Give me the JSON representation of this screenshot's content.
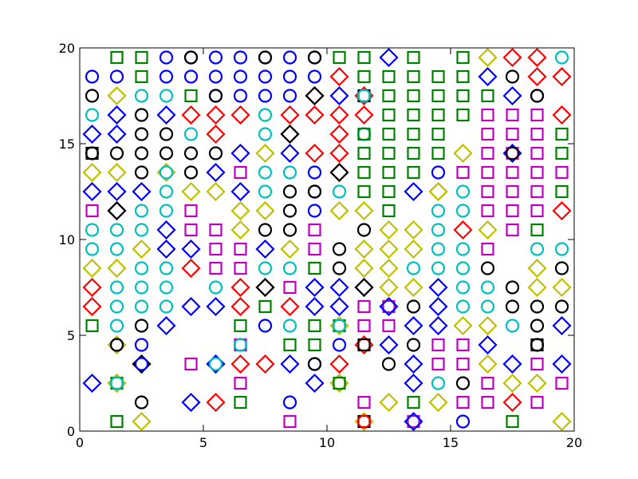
{
  "chart_data": {
    "type": "scatter",
    "title": "",
    "xlabel": "",
    "ylabel": "",
    "xlim": [
      0,
      20
    ],
    "ylim": [
      0,
      20
    ],
    "xticks": [
      "0",
      "5",
      "10",
      "15",
      "20"
    ],
    "yticks": [
      "0",
      "5",
      "10",
      "15",
      "20"
    ],
    "grid": false,
    "legend": "none",
    "marker_fill": "none",
    "colors": {
      "green": "#008000",
      "blue": "#0000ff",
      "cyan": "#00bfbf",
      "black": "#000000",
      "red": "#ff0000",
      "yellow": "#bfbf00",
      "magenta": "#bf00bf"
    },
    "marker_key": {
      "s": "square",
      "o": "circle",
      "d": "diamond"
    },
    "x": [
      0.5,
      1.5,
      2.5,
      3.5,
      4.5,
      5.5,
      6.5,
      7.5,
      8.5,
      9.5,
      10.5,
      11.5,
      12.5,
      13.5,
      14.5,
      15.5,
      16.5,
      17.5,
      18.5,
      19.5
    ],
    "y": [
      0.5,
      1.5,
      2.5,
      3.5,
      4.5,
      5.5,
      6.5,
      7.5,
      8.5,
      9.5,
      10.5,
      11.5,
      12.5,
      13.5,
      14.5,
      15.5,
      16.5,
      17.5,
      18.5,
      19.5
    ],
    "grid_rows": [
      [
        "",
        "gs",
        "gs",
        "bo",
        "bo",
        "bo",
        "bo",
        "bo",
        "bo",
        "bo",
        "gs",
        "gs",
        "bd",
        "gs",
        "",
        "gs",
        "yd",
        "rd",
        "rd",
        "co"
      ],
      [
        "bo",
        "bo",
        "gs",
        "bo",
        "bo",
        "bo",
        "bo",
        "bo",
        "bo",
        "bo",
        "rd",
        "gs",
        "gs",
        "gs",
        "gs",
        "gs",
        "bd",
        "ko",
        "rd",
        "rd"
      ],
      [
        "ko",
        "yd",
        "co",
        "co",
        "gs",
        "bo",
        "bo",
        "bo",
        "bo",
        "rd",
        "bd",
        "rd",
        "gs",
        "gs",
        "gs",
        "gs",
        "gs",
        "bd",
        "bo",
        ""
      ],
      [
        "co",
        "bd",
        "ko",
        "bd",
        "rd",
        "rd",
        "rd",
        "co",
        "rd",
        "rd",
        "rd",
        "rd",
        "gs",
        "gs",
        "gs",
        "gs",
        "ms",
        "ms",
        "ms",
        "rd"
      ],
      [
        "bd",
        "bd",
        "ko",
        "ko",
        "co",
        "rd",
        "",
        "co",
        "rd",
        "",
        "rd",
        "co",
        "gs",
        "gs",
        "gs",
        "",
        "ms",
        "ms",
        "ms",
        "gs"
      ],
      [
        "ks",
        "ko",
        "ko",
        "ko",
        "ko",
        "ko",
        "bd",
        "yd",
        "bd",
        "rd",
        "rd",
        "gs",
        "gs",
        "gs",
        "gs",
        "yd",
        "ms",
        "bd",
        "ms",
        "gs"
      ],
      [
        "yd",
        "yd",
        "ko",
        "yd",
        "ko",
        "bd",
        "ms",
        "co",
        "co",
        "bo",
        "rd",
        "gs",
        "gs",
        "gs",
        "bo",
        "ms",
        "ms",
        "ms",
        "ms",
        "ms"
      ],
      [
        "bd",
        "bd",
        "bd",
        "co",
        "yd",
        "yd",
        "bd",
        "co",
        "ko",
        "bo",
        "co",
        "gs",
        "gs",
        "bd",
        "yd",
        "co",
        "ms",
        "ms",
        "ms",
        "gs"
      ],
      [
        "ms",
        "bd",
        "co",
        "co",
        "ms",
        "",
        "yd",
        "yd",
        "ko",
        "bo",
        "yd",
        "yd",
        "gs",
        "",
        "co",
        "co",
        "ms",
        "ms",
        "ms",
        "rd"
      ],
      [
        "co",
        "co",
        "co",
        "bd",
        "ms",
        "ms",
        "yd",
        "ko",
        "ko",
        "ms",
        "",
        "ko",
        "yd",
        "yd",
        "co",
        "rd",
        "yd",
        "ms",
        "gs",
        ""
      ],
      [
        "co",
        "co",
        "yd",
        "bd",
        "bd",
        "ms",
        "ms",
        "bd",
        "yd",
        "ms",
        "ko",
        "yd",
        "yd",
        "yd",
        "co",
        "co",
        "ms",
        "",
        "co",
        "co"
      ],
      [
        "yd",
        "yd",
        "co",
        "co",
        "rd",
        "ms",
        "ms",
        "co",
        "co",
        "gs",
        "ko",
        "yd",
        "yd",
        "co",
        "co",
        "co",
        "ko",
        "",
        "yd",
        "ko"
      ],
      [
        "rd",
        "co",
        "co",
        "co",
        "",
        "co",
        "rd",
        "rd",
        "ms",
        "bd",
        "bd",
        "bd",
        "yd",
        "yd",
        "bd",
        "co",
        "co",
        "ko",
        "yd",
        "yd"
      ],
      [
        "rd",
        "co",
        "co",
        "co",
        "bd",
        "bd",
        "rd",
        "gs",
        "rd",
        "bd",
        "bd",
        "ms",
        "co",
        "ko",
        "bd",
        "co",
        "co",
        "ko",
        "ko",
        "ko"
      ],
      [
        "gs",
        "co",
        "ko",
        "bd",
        "",
        "",
        "gs",
        "bo",
        "co",
        "gs",
        "co",
        "ms",
        "ms",
        "bd",
        "bd",
        "yd",
        "yd",
        "co",
        "ko",
        "bd"
      ],
      [
        "",
        "ko",
        "bo",
        "",
        "",
        "",
        "ms",
        "",
        "gs",
        "gs",
        "bo",
        "rd",
        "bd",
        "ko",
        "ms",
        "ms",
        "bd",
        "",
        "ko",
        ""
      ],
      [
        "",
        "",
        "bd",
        "",
        "ms",
        "bd",
        "rd",
        "rd",
        "bd",
        "bo",
        "rd",
        "",
        "ko",
        "bd",
        "ms",
        "ms",
        "yd",
        "bd",
        "ms",
        "bd"
      ],
      [
        "bd",
        "yd",
        "",
        "",
        "",
        "",
        "ms",
        "",
        "",
        "bd",
        "co",
        "",
        "",
        "bd",
        "co",
        "ko",
        "ms",
        "yd",
        "yd",
        "ms"
      ],
      [
        "",
        "",
        "ko",
        "",
        "bd",
        "rd",
        "gs",
        "",
        "bo",
        "",
        "",
        "ms",
        "yd",
        "gs",
        "yd",
        "ms",
        "ms",
        "rd",
        "ms",
        ""
      ],
      [
        "",
        "gs",
        "yd",
        "",
        "",
        "",
        "",
        "",
        "ms",
        "",
        "",
        "yd",
        "",
        "co",
        "",
        "bo",
        "",
        "gs",
        "",
        "yd"
      ]
    ],
    "overlays": [
      {
        "x": 0.5,
        "y": 14.5,
        "m": "ko"
      },
      {
        "x": 1.5,
        "y": 11.5,
        "m": "kd"
      },
      {
        "x": 1.5,
        "y": 4.5,
        "m": "yd"
      },
      {
        "x": 1.5,
        "y": 4.5,
        "m": "ko"
      },
      {
        "x": 1.5,
        "y": 2.5,
        "m": "gs"
      },
      {
        "x": 1.5,
        "y": 2.5,
        "m": "yd"
      },
      {
        "x": 1.5,
        "y": 2.5,
        "m": "co"
      },
      {
        "x": 2.5,
        "y": 3.5,
        "m": "kd"
      },
      {
        "x": 2.5,
        "y": 3.5,
        "m": "bo"
      },
      {
        "x": 3.5,
        "y": 13.5,
        "m": "co"
      },
      {
        "x": 4.5,
        "y": 19.5,
        "m": "ko"
      },
      {
        "x": 5.5,
        "y": 17.5,
        "m": "ko"
      },
      {
        "x": 5.5,
        "y": 3.5,
        "m": "bd"
      },
      {
        "x": 5.5,
        "y": 3.5,
        "m": "co"
      },
      {
        "x": 6.5,
        "y": 4.5,
        "m": "ms"
      },
      {
        "x": 6.5,
        "y": 4.5,
        "m": "co"
      },
      {
        "x": 7.5,
        "y": 19.5,
        "m": "ko"
      },
      {
        "x": 7.5,
        "y": 7.5,
        "m": "kd"
      },
      {
        "x": 8.5,
        "y": 15.5,
        "m": "kd"
      },
      {
        "x": 9.5,
        "y": 19.5,
        "m": "ko"
      },
      {
        "x": 9.5,
        "y": 17.5,
        "m": "kd"
      },
      {
        "x": 9.5,
        "y": 12.5,
        "m": "ko"
      },
      {
        "x": 9.5,
        "y": 3.5,
        "m": "ko"
      },
      {
        "x": 10.5,
        "y": 13.5,
        "m": "kd"
      },
      {
        "x": 10.5,
        "y": 5.5,
        "m": "gs"
      },
      {
        "x": 10.5,
        "y": 5.5,
        "m": "yd"
      },
      {
        "x": 10.5,
        "y": 5.5,
        "m": "co"
      },
      {
        "x": 10.5,
        "y": 2.5,
        "m": "yd"
      },
      {
        "x": 10.5,
        "y": 2.5,
        "m": "gs"
      },
      {
        "x": 11.5,
        "y": 17.5,
        "m": "ks"
      },
      {
        "x": 11.5,
        "y": 17.5,
        "m": "co"
      },
      {
        "x": 11.5,
        "y": 15.5,
        "m": "gs"
      },
      {
        "x": 11.5,
        "y": 7.5,
        "m": "kd"
      },
      {
        "x": 11.5,
        "y": 4.5,
        "m": "ks"
      },
      {
        "x": 11.5,
        "y": 0.5,
        "m": "ks"
      },
      {
        "x": 11.5,
        "y": 0.5,
        "m": "ro"
      },
      {
        "x": 12.5,
        "y": 6.5,
        "m": "ms"
      },
      {
        "x": 12.5,
        "y": 6.5,
        "m": "bd"
      },
      {
        "x": 13.5,
        "y": 0.5,
        "m": "ms"
      },
      {
        "x": 13.5,
        "y": 0.5,
        "m": "bd"
      },
      {
        "x": 14.5,
        "y": 12.5,
        "m": "yd"
      },
      {
        "x": 17.5,
        "y": 14.5,
        "m": "ms"
      },
      {
        "x": 17.5,
        "y": 14.5,
        "m": "ko"
      },
      {
        "x": 18.5,
        "y": 17.5,
        "m": "ko"
      },
      {
        "x": 18.5,
        "y": 4.5,
        "m": "ks"
      }
    ]
  }
}
